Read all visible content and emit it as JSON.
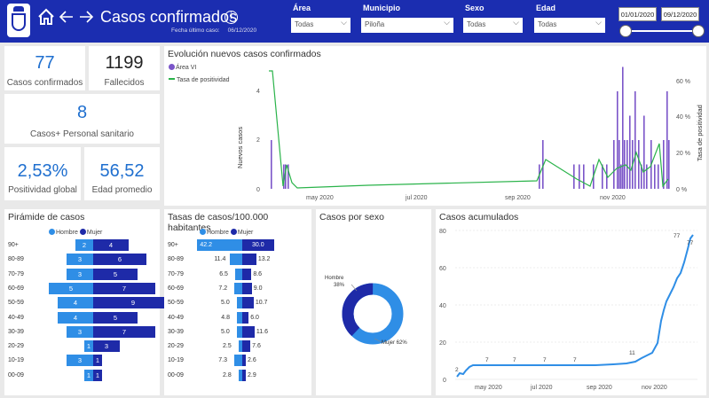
{
  "header": {
    "title": "Casos confirmados",
    "subtitle_label": "Fecha último caso:",
    "subtitle_value": "06/12/2020",
    "info_glyph": "i",
    "filters": [
      {
        "label": "Área",
        "value": "Todas"
      },
      {
        "label": "Municipio",
        "value": "Piloña"
      },
      {
        "label": "Sexo",
        "value": "Todas"
      },
      {
        "label": "Edad",
        "value": "Todas"
      }
    ],
    "date_from": "01/01/2020",
    "date_to": "09/12/2020"
  },
  "kpis": {
    "confirmados_value": "77",
    "confirmados_label": "Casos confirmados",
    "fallecidos_value": "1199",
    "fallecidos_label": "Fallecidos",
    "sanitario_value": "8",
    "sanitario_label": "Casos+ Personal sanitario",
    "positividad_value": "2,53%",
    "positividad_label": "Positividad global",
    "edad_value": "56,52",
    "edad_label": "Edad promedio"
  },
  "evolucion": {
    "title": "Evolución nuevos casos confirmados",
    "legend_bars": "Área VI",
    "legend_line": "Tasa de positividad",
    "ylabel": "Nuevos casos",
    "y2label": "Tasa de positividad",
    "yticks": [
      "0",
      "2",
      "4"
    ],
    "y2ticks": [
      "0 %",
      "20 %",
      "40 %",
      "60 %"
    ],
    "xticks": [
      "may 2020",
      "jul 2020",
      "sep 2020",
      "nov 2020"
    ]
  },
  "piramide": {
    "title": "Pirámide de casos",
    "legend": [
      "Hombre",
      "Mujer"
    ],
    "rows": [
      {
        "age": "90+",
        "h": "2",
        "m": "4"
      },
      {
        "age": "80-89",
        "h": "3",
        "m": "6"
      },
      {
        "age": "70-79",
        "h": "3",
        "m": "5"
      },
      {
        "age": "60-69",
        "h": "5",
        "m": "7"
      },
      {
        "age": "50-59",
        "h": "4",
        "m": "9"
      },
      {
        "age": "40-49",
        "h": "4",
        "m": "5"
      },
      {
        "age": "30-39",
        "h": "3",
        "m": "7"
      },
      {
        "age": "20-29",
        "h": "1",
        "m": "3"
      },
      {
        "age": "10-19",
        "h": "3",
        "m": "1"
      },
      {
        "age": "00-09",
        "h": "1",
        "m": "1"
      }
    ]
  },
  "tasas": {
    "title": "Tasas de casos/100.000 habitantes",
    "legend": [
      "Hombre",
      "Mujer"
    ],
    "rows": [
      {
        "age": "90+",
        "h": "42.2",
        "m": "30.0"
      },
      {
        "age": "80-89",
        "h": "11.4",
        "m": "13.2"
      },
      {
        "age": "70-79",
        "h": "6.5",
        "m": "8.6"
      },
      {
        "age": "60-69",
        "h": "7.2",
        "m": "9.0"
      },
      {
        "age": "50-59",
        "h": "5.0",
        "m": "10.7"
      },
      {
        "age": "40-49",
        "h": "4.8",
        "m": "6.0"
      },
      {
        "age": "30-39",
        "h": "5.0",
        "m": "11.6"
      },
      {
        "age": "20-29",
        "h": "2.5",
        "m": "7.6"
      },
      {
        "age": "10-19",
        "h": "7.3",
        "m": "2.6"
      },
      {
        "age": "00-09",
        "h": "2.8",
        "m": "2.9"
      }
    ]
  },
  "sexo": {
    "title": "Casos por sexo",
    "hombre_label": "Hombre",
    "hombre_pct": "38%",
    "mujer_label": "Mujer 62%"
  },
  "acumulados": {
    "title": "Casos acumulados",
    "yticks": [
      "0",
      "20",
      "40",
      "60",
      "80"
    ],
    "xticks": [
      "may 2020",
      "jul 2020",
      "sep 2020",
      "nov 2020"
    ],
    "labels": [
      "2",
      "7",
      "7",
      "7",
      "7",
      "11",
      "77",
      "77"
    ]
  },
  "colors": {
    "header": "#1b2db0",
    "hombre": "#2f8ee6",
    "mujer": "#1e2aa8",
    "purple": "#7b55c9",
    "green": "#2ab34a",
    "kpi_blue": "#1f6fcf"
  },
  "chart_data": [
    {
      "type": "bar",
      "title": "Evolución nuevos casos confirmados",
      "ylabel": "Nuevos casos",
      "series": [
        {
          "name": "Área VI"
        },
        {
          "name": "Tasa de positividad"
        }
      ]
    },
    {
      "type": "bar",
      "title": "Pirámide de casos",
      "categories": [
        "90+",
        "80-89",
        "70-79",
        "60-69",
        "50-59",
        "40-49",
        "30-39",
        "20-29",
        "10-19",
        "00-09"
      ],
      "series": [
        {
          "name": "Hombre",
          "values": [
            2,
            3,
            3,
            5,
            4,
            4,
            3,
            1,
            3,
            1
          ]
        },
        {
          "name": "Mujer",
          "values": [
            4,
            6,
            5,
            7,
            9,
            5,
            7,
            3,
            1,
            1
          ]
        }
      ]
    },
    {
      "type": "bar",
      "title": "Tasas de casos/100.000 habitantes",
      "categories": [
        "90+",
        "80-89",
        "70-79",
        "60-69",
        "50-59",
        "40-49",
        "30-39",
        "20-29",
        "10-19",
        "00-09"
      ],
      "series": [
        {
          "name": "Hombre",
          "values": [
            42.2,
            11.4,
            6.5,
            7.2,
            5.0,
            4.8,
            5.0,
            2.5,
            7.3,
            2.8
          ]
        },
        {
          "name": "Mujer",
          "values": [
            30.0,
            13.2,
            8.6,
            9.0,
            10.7,
            6.0,
            11.6,
            7.6,
            2.6,
            2.9
          ]
        }
      ]
    },
    {
      "type": "pie",
      "title": "Casos por sexo",
      "categories": [
        "Hombre",
        "Mujer"
      ],
      "values": [
        38,
        62
      ]
    },
    {
      "type": "line",
      "title": "Casos acumulados",
      "ylim": [
        0,
        80
      ]
    }
  ]
}
